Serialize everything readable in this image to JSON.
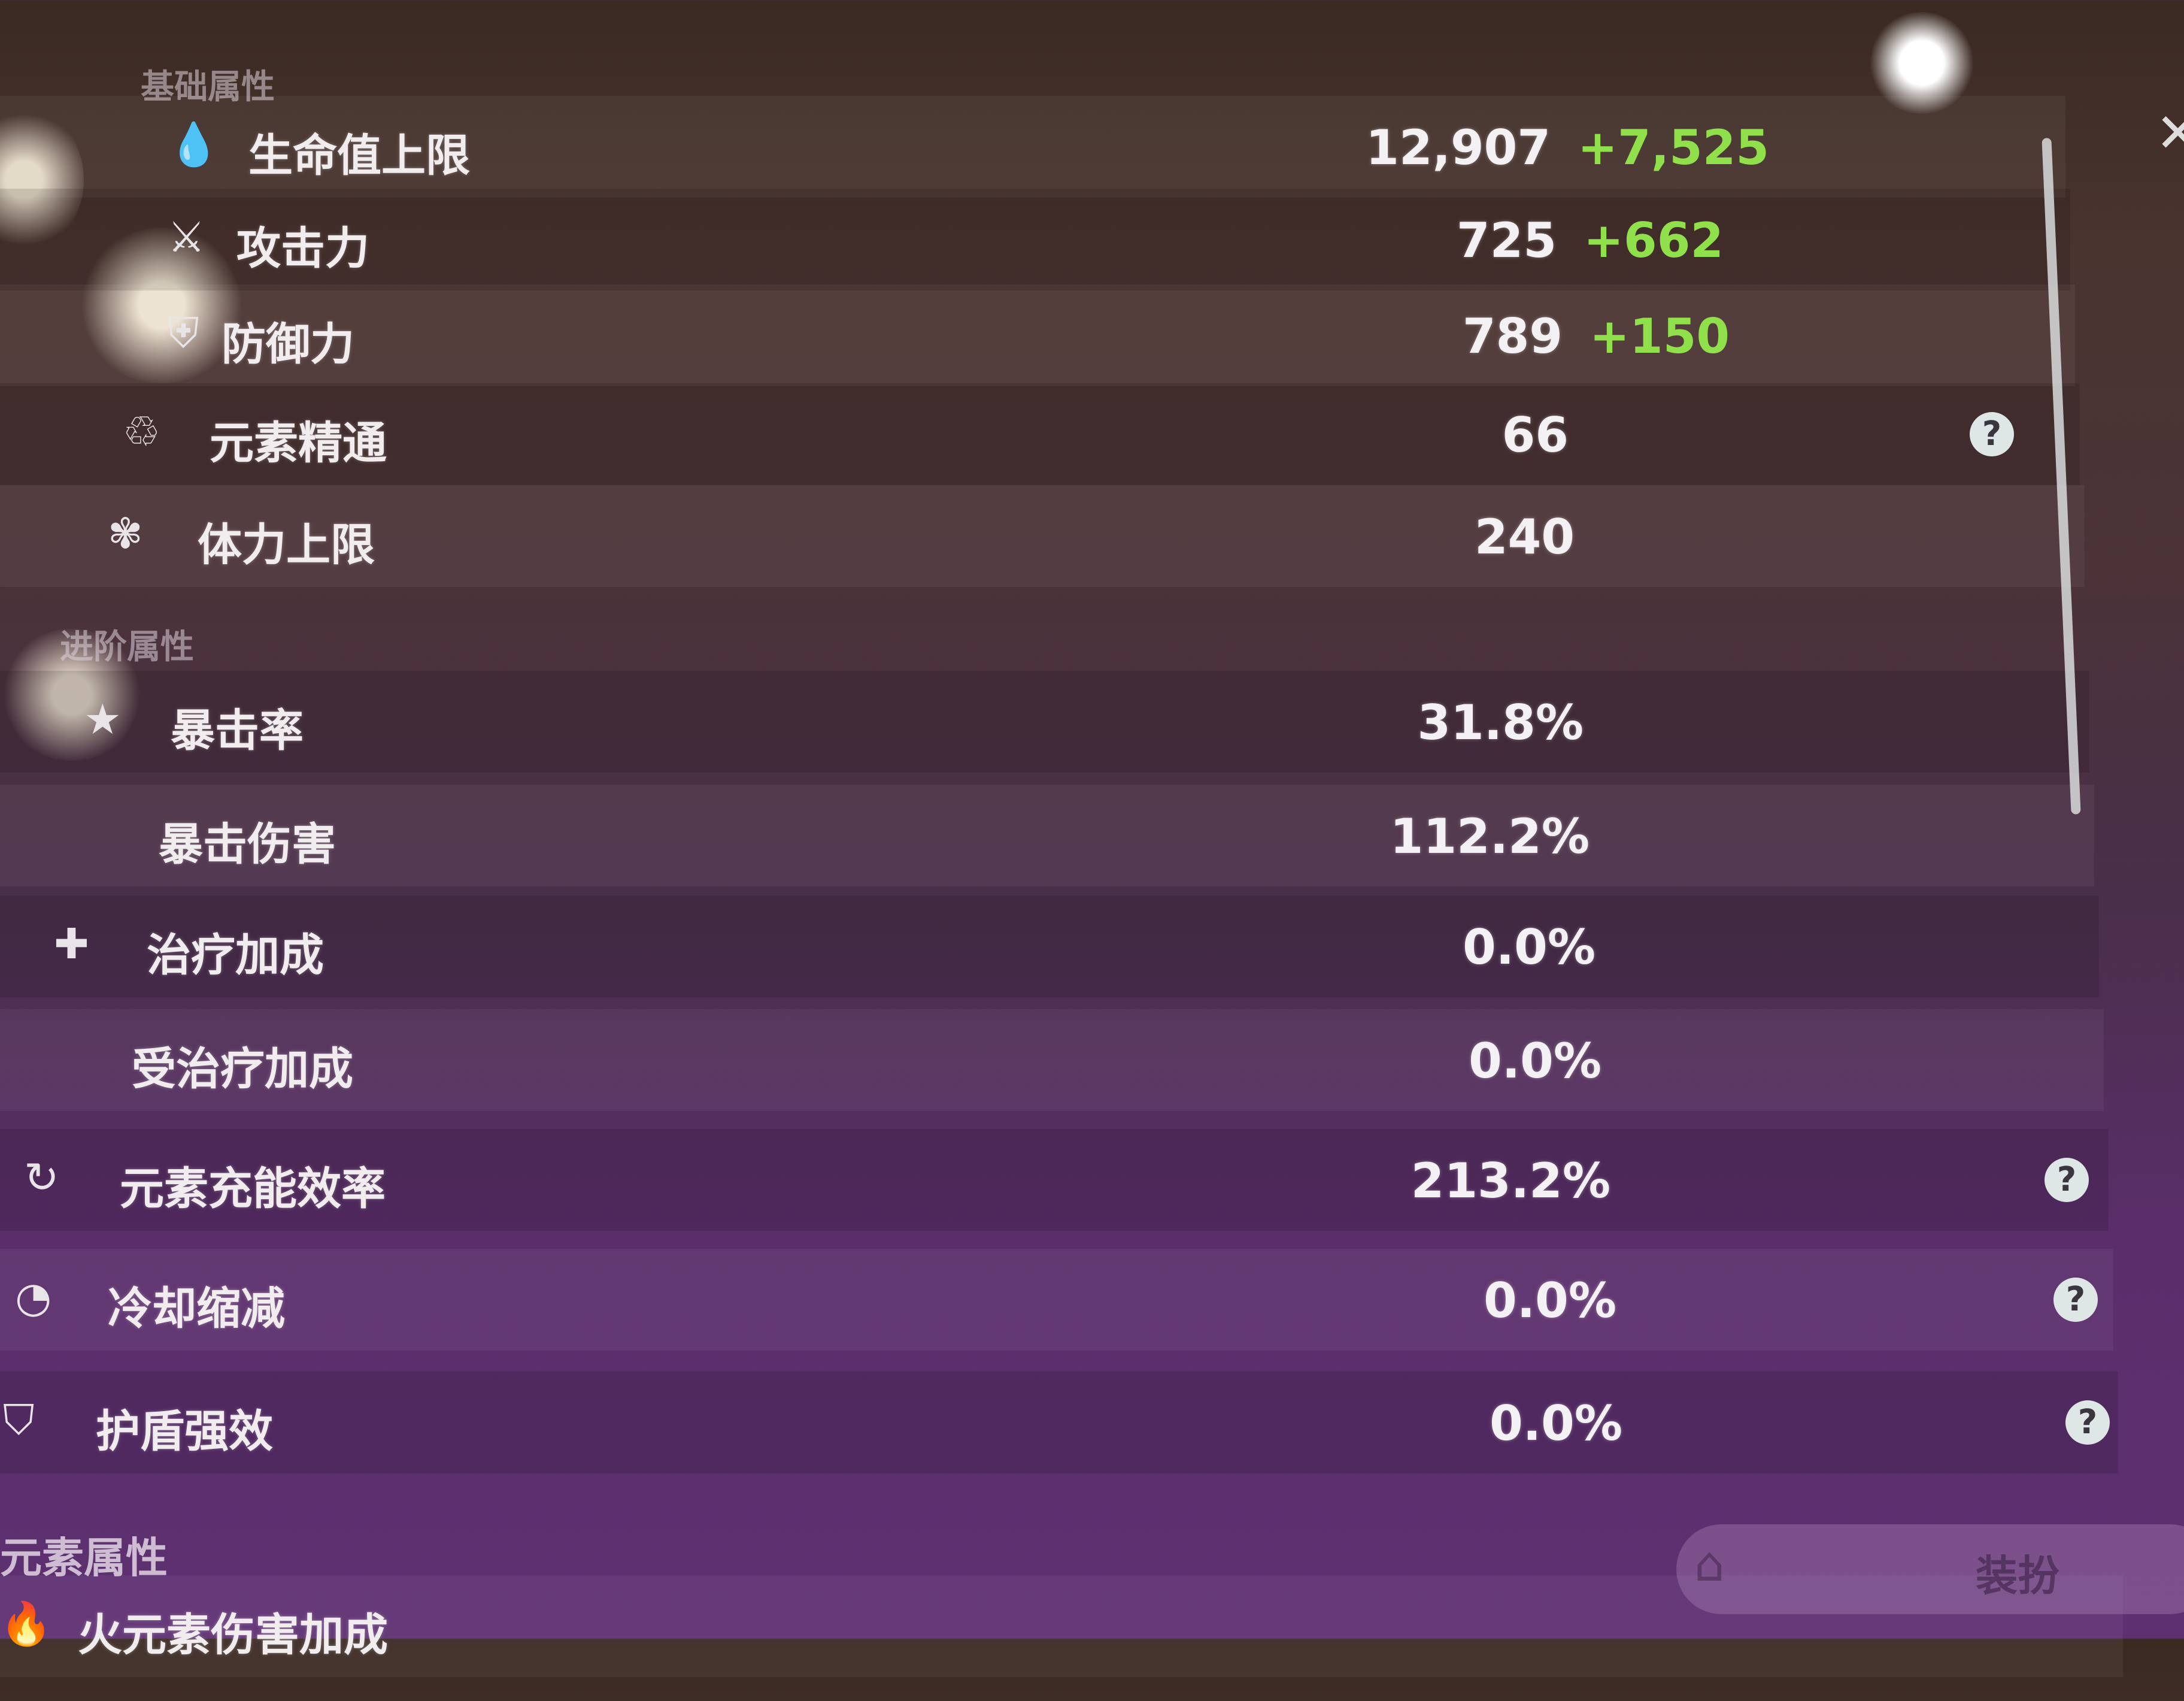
{
  "sections": {
    "basic": "基础属性",
    "advanced": "进阶属性",
    "element": "元素属性"
  },
  "rows": [
    {
      "label": "生命值上限",
      "icon": "hp-drop-icon",
      "glyph": "💧",
      "value": "12,907",
      "bonus": "+7,525"
    },
    {
      "label": "攻击力",
      "icon": "attack-sword-icon",
      "glyph": "⚔",
      "value": "725",
      "bonus": "+662"
    },
    {
      "label": "防御力",
      "icon": "defense-shield-icon",
      "glyph": "⛨",
      "value": "789",
      "bonus": "+150"
    },
    {
      "label": "元素精通",
      "icon": "elemental-mastery-icon",
      "glyph": "♲",
      "value": "66",
      "help": true
    },
    {
      "label": "体力上限",
      "icon": "stamina-icon",
      "glyph": "✾",
      "value": "240"
    },
    {
      "label": "暴击率",
      "icon": "crit-rate-star-icon",
      "glyph": "★",
      "value": "31.8%"
    },
    {
      "label": "暴击伤害",
      "icon": "crit-dmg-icon",
      "glyph": "",
      "value": "112.2%"
    },
    {
      "label": "治疗加成",
      "icon": "healing-cross-icon",
      "glyph": "✚",
      "value": "0.0%"
    },
    {
      "label": "受治疗加成",
      "icon": "incoming-healing-icon",
      "glyph": "",
      "value": "0.0%"
    },
    {
      "label": "元素充能效率",
      "icon": "energy-recharge-icon",
      "glyph": "↻",
      "value": "213.2%",
      "help": true
    },
    {
      "label": "冷却缩减",
      "icon": "cooldown-icon",
      "glyph": "◔",
      "value": "0.0%",
      "help": true
    },
    {
      "label": "护盾强效",
      "icon": "shield-strength-icon",
      "glyph": "⛉",
      "value": "0.0%",
      "help": true
    },
    {
      "label": "火元素伤害加成",
      "icon": "pyro-icon",
      "glyph": "🔥",
      "value": ""
    }
  ],
  "help_glyph": "?",
  "dress_button": {
    "label": "装扮",
    "icon": "hanger-icon"
  },
  "colors": {
    "bonus": "#8fe04a",
    "text": "#f4f1f4"
  }
}
